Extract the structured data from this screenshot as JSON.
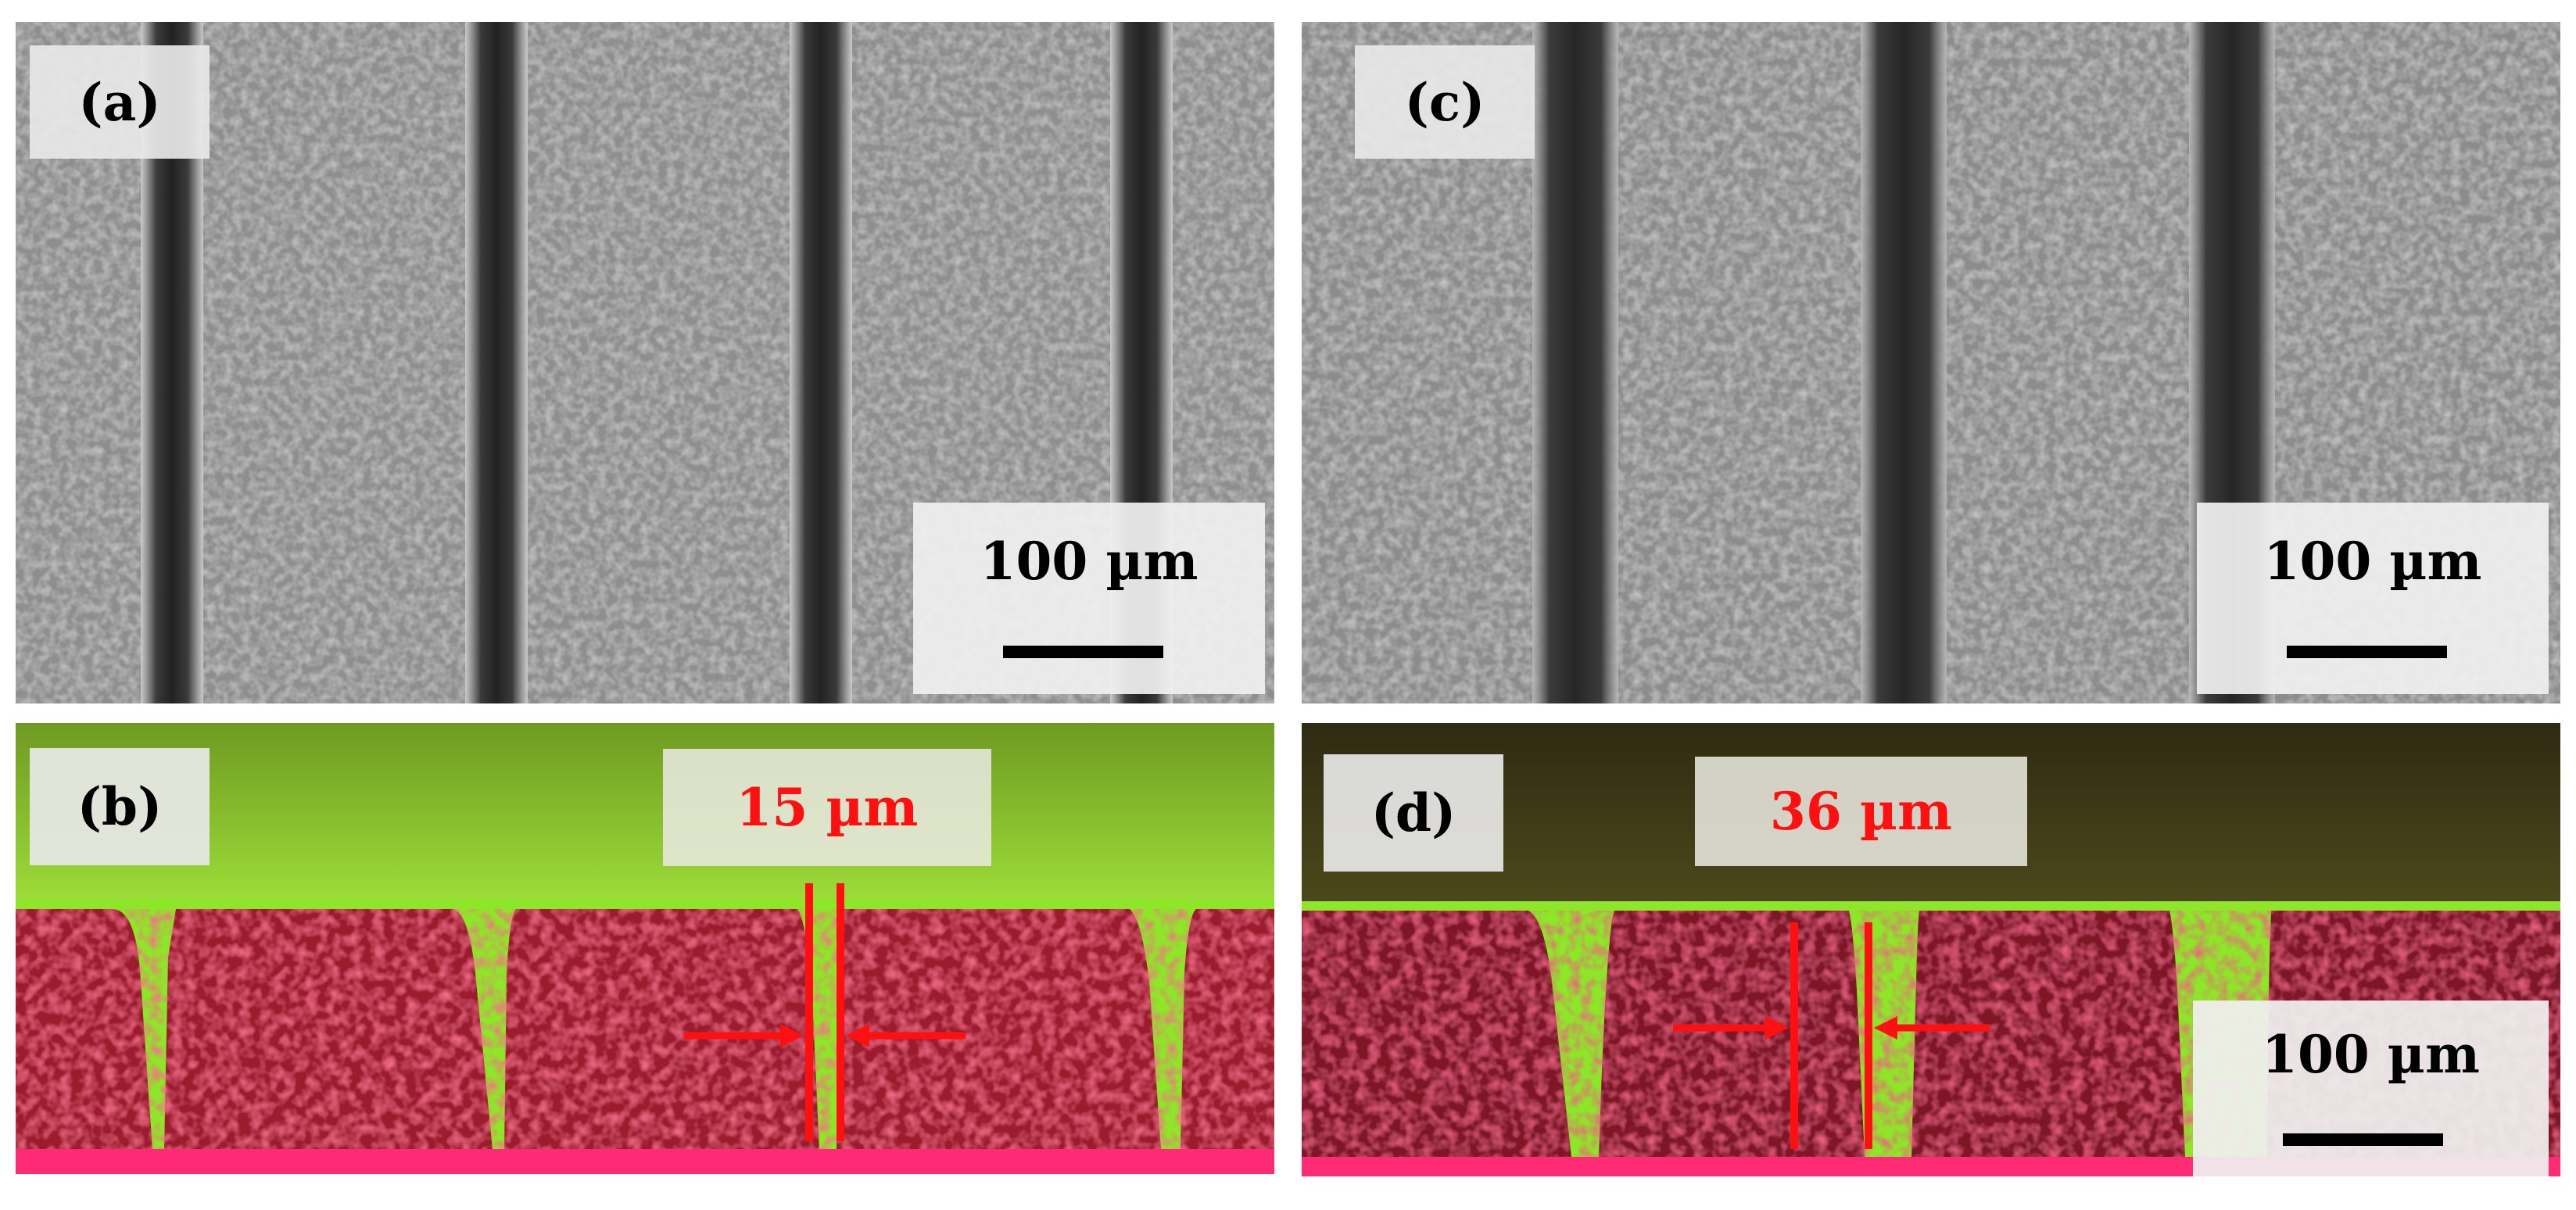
{
  "panels": {
    "a": {
      "label": "(a)",
      "scale": "100 µm"
    },
    "c": {
      "label": "(c)",
      "scale": "100 µm"
    },
    "b": {
      "label": "(b)",
      "measurement": "15 µm"
    },
    "d": {
      "label": "(d)",
      "measurement": "36 µm",
      "scale": "100 µm"
    }
  },
  "colors": {
    "sem_background": "#9a9a9a",
    "groove_dark": "#2b2b2b",
    "fluorescent_green": "#8ee628",
    "sample_red": "#a0182c",
    "substrate_pink": "#ff2a74",
    "annotation_red": "#ff1010"
  }
}
